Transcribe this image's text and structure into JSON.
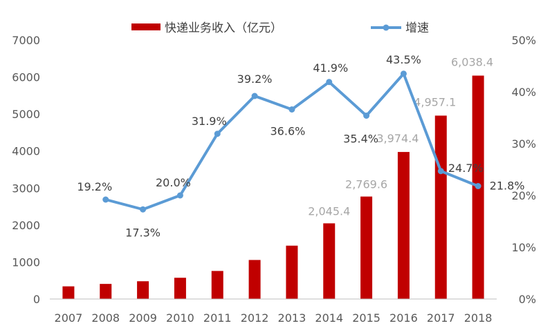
{
  "chart_data": {
    "type": "bar+line",
    "categories": [
      "2007",
      "2008",
      "2009",
      "2010",
      "2011",
      "2012",
      "2013",
      "2014",
      "2015",
      "2016",
      "2017",
      "2018"
    ],
    "series": [
      {
        "name": "快递业务收入（亿元）",
        "type": "bar",
        "axis": "left",
        "color": "#c00000",
        "values": [
          342,
          408,
          480,
          574,
          758,
          1055,
          1442,
          2045.4,
          2769.6,
          3974.4,
          4957.1,
          6038.4
        ],
        "data_labels": [
          null,
          null,
          null,
          null,
          null,
          null,
          null,
          "2,045.4",
          "2,769.6",
          "3,974.4",
          "4,957.1",
          "6,038.4"
        ]
      },
      {
        "name": "增速",
        "type": "line",
        "axis": "right",
        "color": "#5b9bd5",
        "values": [
          null,
          19.2,
          17.3,
          20.0,
          31.9,
          39.2,
          36.6,
          41.9,
          35.4,
          43.5,
          24.7,
          21.8
        ],
        "data_labels": [
          null,
          "19.2%",
          "17.3%",
          "20.0%",
          "31.9%",
          "39.2%",
          "36.6%",
          "41.9%",
          "35.4%",
          "43.5%",
          "24.7%",
          "21.8%"
        ]
      }
    ],
    "y_left": {
      "ylim": [
        0,
        7000
      ],
      "ticks": [
        "0",
        "1000",
        "2000",
        "3000",
        "4000",
        "5000",
        "6000",
        "7000"
      ]
    },
    "y_right": {
      "ylim": [
        0,
        50
      ],
      "ticks": [
        "0%",
        "10%",
        "20%",
        "30%",
        "40%",
        "50%"
      ]
    },
    "legend": {
      "position": "top-center",
      "items": [
        "快递业务收入（亿元）",
        "增速"
      ]
    },
    "grid": false
  }
}
